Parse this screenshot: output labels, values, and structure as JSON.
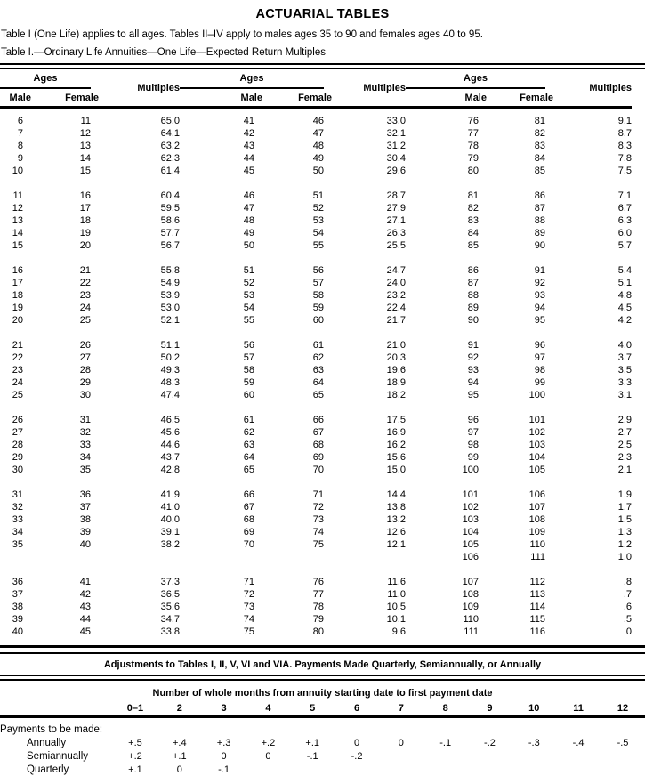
{
  "page": {
    "title": "ACTUARIAL TABLES",
    "intro_line1": "Table I (One Life) applies to all ages. Tables II–IV apply to males ages 35 to 90 and females ages 40 to 95.",
    "intro_line2": "Table I.—Ordinary Life Annuities—One Life—Expected Return Multiples"
  },
  "main_table": {
    "headers": {
      "ages": "Ages",
      "male": "Male",
      "female": "Female",
      "multiples": "Multiples"
    },
    "blocks": [
      [
        [
          "6",
          "11",
          "65.0",
          "41",
          "46",
          "33.0",
          "76",
          "81",
          "9.1"
        ],
        [
          "7",
          "12",
          "64.1",
          "42",
          "47",
          "32.1",
          "77",
          "82",
          "8.7"
        ],
        [
          "8",
          "13",
          "63.2",
          "43",
          "48",
          "31.2",
          "78",
          "83",
          "8.3"
        ],
        [
          "9",
          "14",
          "62.3",
          "44",
          "49",
          "30.4",
          "79",
          "84",
          "7.8"
        ],
        [
          "10",
          "15",
          "61.4",
          "45",
          "50",
          "29.6",
          "80",
          "85",
          "7.5"
        ]
      ],
      [
        [
          "11",
          "16",
          "60.4",
          "46",
          "51",
          "28.7",
          "81",
          "86",
          "7.1"
        ],
        [
          "12",
          "17",
          "59.5",
          "47",
          "52",
          "27.9",
          "82",
          "87",
          "6.7"
        ],
        [
          "13",
          "18",
          "58.6",
          "48",
          "53",
          "27.1",
          "83",
          "88",
          "6.3"
        ],
        [
          "14",
          "19",
          "57.7",
          "49",
          "54",
          "26.3",
          "84",
          "89",
          "6.0"
        ],
        [
          "15",
          "20",
          "56.7",
          "50",
          "55",
          "25.5",
          "85",
          "90",
          "5.7"
        ]
      ],
      [
        [
          "16",
          "21",
          "55.8",
          "51",
          "56",
          "24.7",
          "86",
          "91",
          "5.4"
        ],
        [
          "17",
          "22",
          "54.9",
          "52",
          "57",
          "24.0",
          "87",
          "92",
          "5.1"
        ],
        [
          "18",
          "23",
          "53.9",
          "53",
          "58",
          "23.2",
          "88",
          "93",
          "4.8"
        ],
        [
          "19",
          "24",
          "53.0",
          "54",
          "59",
          "22.4",
          "89",
          "94",
          "4.5"
        ],
        [
          "20",
          "25",
          "52.1",
          "55",
          "60",
          "21.7",
          "90",
          "95",
          "4.2"
        ]
      ],
      [
        [
          "21",
          "26",
          "51.1",
          "56",
          "61",
          "21.0",
          "91",
          "96",
          "4.0"
        ],
        [
          "22",
          "27",
          "50.2",
          "57",
          "62",
          "20.3",
          "92",
          "97",
          "3.7"
        ],
        [
          "23",
          "28",
          "49.3",
          "58",
          "63",
          "19.6",
          "93",
          "98",
          "3.5"
        ],
        [
          "24",
          "29",
          "48.3",
          "59",
          "64",
          "18.9",
          "94",
          "99",
          "3.3"
        ],
        [
          "25",
          "30",
          "47.4",
          "60",
          "65",
          "18.2",
          "95",
          "100",
          "3.1"
        ]
      ],
      [
        [
          "26",
          "31",
          "46.5",
          "61",
          "66",
          "17.5",
          "96",
          "101",
          "2.9"
        ],
        [
          "27",
          "32",
          "45.6",
          "62",
          "67",
          "16.9",
          "97",
          "102",
          "2.7"
        ],
        [
          "28",
          "33",
          "44.6",
          "63",
          "68",
          "16.2",
          "98",
          "103",
          "2.5"
        ],
        [
          "29",
          "34",
          "43.7",
          "64",
          "69",
          "15.6",
          "99",
          "104",
          "2.3"
        ],
        [
          "30",
          "35",
          "42.8",
          "65",
          "70",
          "15.0",
          "100",
          "105",
          "2.1"
        ]
      ],
      [
        [
          "31",
          "36",
          "41.9",
          "66",
          "71",
          "14.4",
          "101",
          "106",
          "1.9"
        ],
        [
          "32",
          "37",
          "41.0",
          "67",
          "72",
          "13.8",
          "102",
          "107",
          "1.7"
        ],
        [
          "33",
          "38",
          "40.0",
          "68",
          "73",
          "13.2",
          "103",
          "108",
          "1.5"
        ],
        [
          "34",
          "39",
          "39.1",
          "69",
          "74",
          "12.6",
          "104",
          "109",
          "1.3"
        ],
        [
          "35",
          "40",
          "38.2",
          "70",
          "75",
          "12.1",
          "105",
          "110",
          "1.2"
        ],
        [
          "",
          "",
          "",
          "",
          "",
          "",
          "106",
          "111",
          "1.0"
        ]
      ],
      [
        [
          "36",
          "41",
          "37.3",
          "71",
          "76",
          "11.6",
          "107",
          "112",
          ".8"
        ],
        [
          "37",
          "42",
          "36.5",
          "72",
          "77",
          "11.0",
          "108",
          "113",
          ".7"
        ],
        [
          "38",
          "43",
          "35.6",
          "73",
          "78",
          "10.5",
          "109",
          "114",
          ".6"
        ],
        [
          "39",
          "44",
          "34.7",
          "74",
          "79",
          "10.1",
          "110",
          "115",
          ".5"
        ],
        [
          "40",
          "45",
          "33.8",
          "75",
          "80",
          "9.6",
          "111",
          "116",
          "0"
        ]
      ]
    ]
  },
  "adjustments": {
    "title": "Adjustments to Tables I, II, V, VI and VIA. Payments Made Quarterly, Semiannually, or Annually",
    "months_header": "Number of whole months from annuity starting date to first payment date",
    "month_columns": [
      "0–1",
      "2",
      "3",
      "4",
      "5",
      "6",
      "7",
      "8",
      "9",
      "10",
      "11",
      "12"
    ],
    "row_group_label": "Payments to be made:",
    "rows": [
      {
        "label": "Annually",
        "values": [
          "+.5",
          "+.4",
          "+.3",
          "+.2",
          "+.1",
          "0",
          "0",
          "-.1",
          "-.2",
          "-.3",
          "-.4",
          "-.5"
        ]
      },
      {
        "label": "Semiannually",
        "values": [
          "+.2",
          "+.1",
          "0",
          "0",
          "-.1",
          "-.2",
          "",
          "",
          "",
          "",
          "",
          ""
        ]
      },
      {
        "label": "Quarterly",
        "values": [
          "+.1",
          "0",
          "-.1",
          "",
          "",
          "",
          "",
          "",
          "",
          "",
          "",
          ""
        ]
      }
    ]
  }
}
